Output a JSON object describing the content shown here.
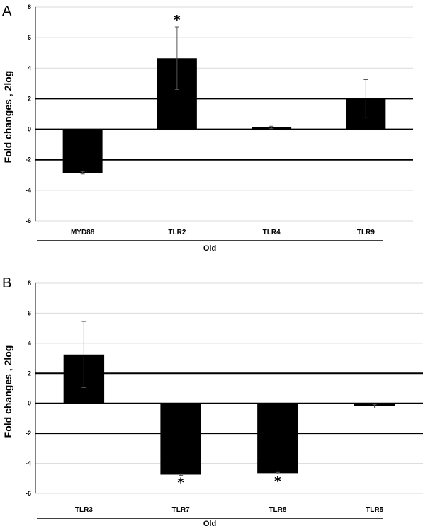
{
  "colors": {
    "bar": "#000000",
    "grid": "#d9d9d9",
    "axis": "#000000",
    "thick_line": "#000000"
  },
  "chart_data": [
    {
      "panel": "A",
      "type": "bar",
      "categories": [
        "MYD88",
        "TLR2",
        "TLR4",
        "TLR9"
      ],
      "values": [
        -2.85,
        4.65,
        0.12,
        2.0
      ],
      "errors": [
        0.08,
        2.05,
        0.08,
        1.25
      ],
      "significant": [
        false,
        true,
        false,
        false
      ],
      "significance_marker": "*",
      "ylabel": "Fold changes , 2log",
      "group_label": "Old",
      "ylim": [
        -6,
        8
      ],
      "yticks": [
        -6,
        -4,
        -2,
        0,
        2,
        4,
        6,
        8
      ],
      "thick_lines": [
        2,
        0,
        -2
      ],
      "grid": true
    },
    {
      "panel": "B",
      "type": "bar",
      "categories": [
        "TLR3",
        "TLR7",
        "TLR8",
        "TLR5"
      ],
      "values": [
        3.25,
        -4.75,
        -4.65,
        -0.2
      ],
      "errors": [
        2.2,
        0.05,
        0.05,
        0.12
      ],
      "significant": [
        false,
        true,
        true,
        false
      ],
      "significance_marker": "*",
      "ylabel": "Fold changes , 2log",
      "group_label": "Old",
      "ylim": [
        -6,
        8
      ],
      "yticks": [
        -6,
        -4,
        -2,
        0,
        2,
        4,
        6,
        8
      ],
      "thick_lines": [
        2,
        0,
        -2
      ],
      "grid": true
    }
  ]
}
